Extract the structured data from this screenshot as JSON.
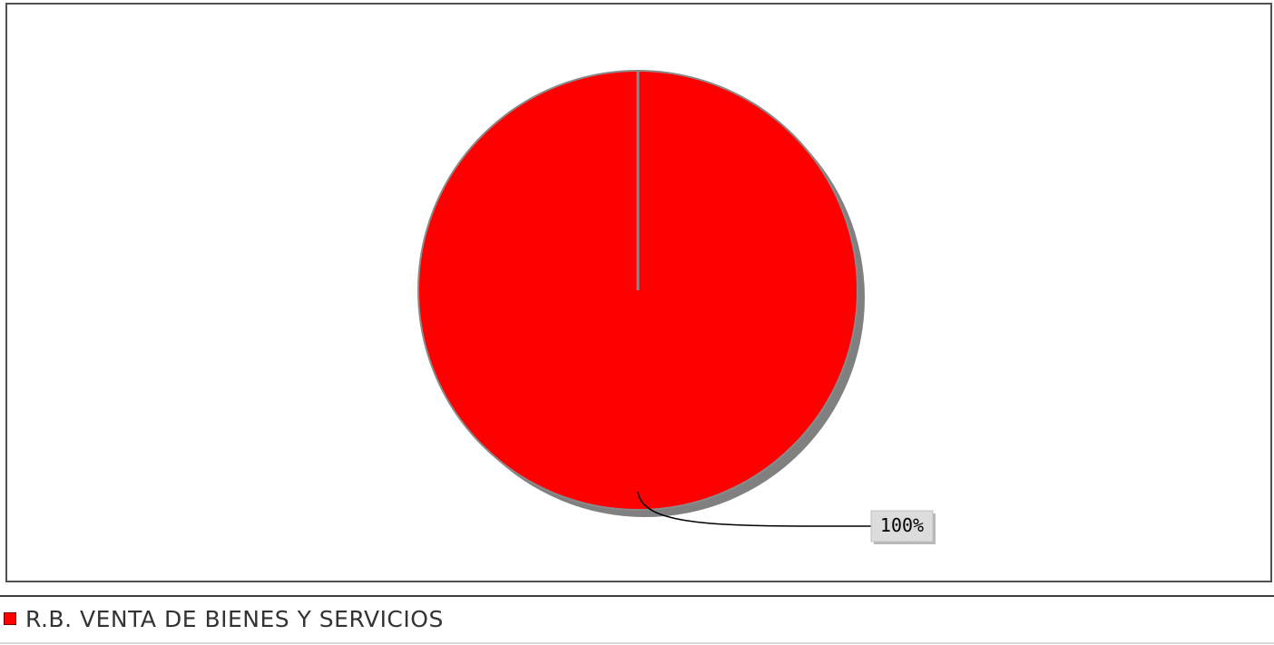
{
  "chart_data": {
    "type": "pie",
    "title": "",
    "slices": [
      {
        "label": "R.B. VENTA DE BIENES Y SERVICIOS",
        "value": 100,
        "percent_label": "100%",
        "color": "#ff0000"
      }
    ],
    "legend": "bottom",
    "shadow_color": "#808080",
    "label_box_color": "#dcdcdc"
  }
}
